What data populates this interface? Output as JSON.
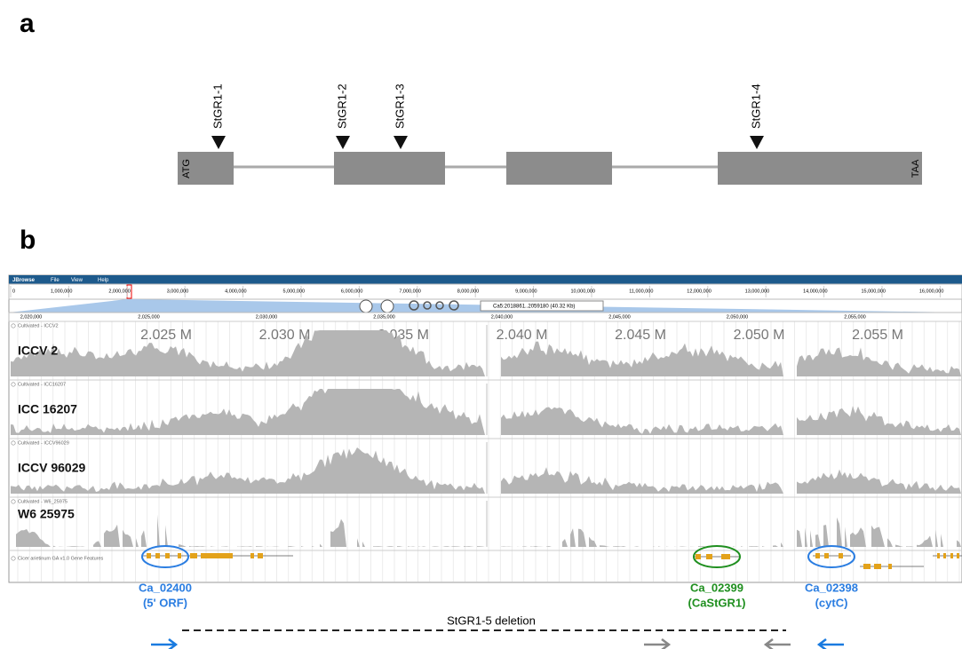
{
  "panel_a": {
    "label": "a",
    "markers": [
      "StGR1-1",
      "StGR1-2",
      "StGR1-3",
      "StGR1-4"
    ],
    "start": "ATG",
    "end": "TAA"
  },
  "panel_b": {
    "label": "b",
    "menu": [
      "JBrowse",
      "File",
      "View",
      "Help"
    ],
    "overview_ticks": [
      "0",
      "1,000,000",
      "2,000,000",
      "3,000,000",
      "4,000,000",
      "5,000,000",
      "6,000,000",
      "7,000,000",
      "8,000,000",
      "9,000,000",
      "10,000,000",
      "11,000,000",
      "12,000,000",
      "13,000,000",
      "14,000,000",
      "15,000,000",
      "16,000,000"
    ],
    "location": "Ca5:2018861..2059180 (40.32 Kb)",
    "detail_ticks": [
      "2,020,000",
      "2,025,000",
      "2,030,000",
      "2,035,000",
      "2,040,000",
      "2,045,000",
      "2,050,000",
      "2,055,000"
    ],
    "scale_labels": [
      "2.025 M",
      "2.030 M",
      "2.035 M",
      "2.040 M",
      "2.045 M",
      "2.050 M",
      "2.055 M"
    ],
    "tracks": [
      {
        "header": "Cultivated - ICCV2",
        "name": "ICCV 2"
      },
      {
        "header": "Cultivated - ICC16207",
        "name": "ICC 16207"
      },
      {
        "header": "Cultivated - ICCV96029",
        "name": "ICCV 96029"
      },
      {
        "header": "Cultivated - W6_25975",
        "name": "W6 25975"
      }
    ],
    "gene_track": "Cicer arietinum GA v1.0 Gene Features",
    "genes": [
      {
        "id": "Ca_02400",
        "note": "(5' ORF)"
      },
      {
        "id": "Ca_02399",
        "note": "(CaStGR1)"
      },
      {
        "id": "Ca_02398",
        "note": "(cytC)"
      }
    ],
    "deletion": "StGR1-5 deletion"
  }
}
